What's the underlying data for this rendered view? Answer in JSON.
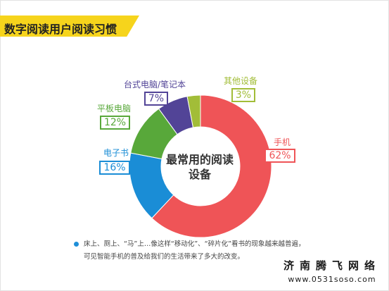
{
  "header": {
    "title": "数字阅读用户阅读习惯"
  },
  "chart_data": {
    "type": "pie",
    "title": "最常用的阅读设备",
    "categories": [
      "手机",
      "电子书",
      "平板电脑",
      "台式电脑/笔记本",
      "其他设备"
    ],
    "values": [
      62,
      16,
      12,
      7,
      3
    ],
    "value_labels": [
      "62%",
      "16%",
      "12%",
      "7%",
      "3%"
    ],
    "colors": [
      "#ef5457",
      "#1a8dd6",
      "#58a83a",
      "#524497",
      "#a2bd38"
    ]
  },
  "note": {
    "line1": "床上、厕上、“马”上…像这样“移动化”、“碎片化”看书的现象越来越普遍，",
    "line2": "可见智能手机的普及给我们的生活带来了多大的改变。"
  },
  "watermark": {
    "line1": "济南腾飞网络",
    "line2": "www.0531soso.com"
  },
  "colors": {
    "title_bar": "#f6d41c",
    "bullet": "#1f8fd8"
  }
}
